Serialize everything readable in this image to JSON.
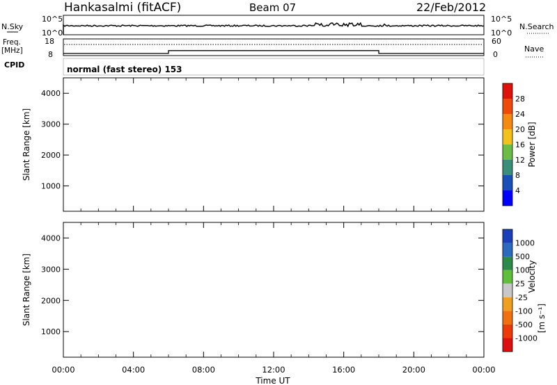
{
  "header": {
    "station": "Hankasalmi (fitACF)",
    "beam": "Beam 07",
    "date": "22/Feb/2012"
  },
  "colors": {
    "power_scale": [
      "#0000ff",
      "#1a4fb8",
      "#2d7fbf",
      "#3f9a6a",
      "#6bbd45",
      "#b7d32a",
      "#f2c21a",
      "#f59a12",
      "#f06a0c",
      "#e8380a",
      "#dd1608"
    ],
    "velocity_scale": [
      "#1a3fb8",
      "#2d6bbf",
      "#2e8a4a",
      "#5fbf3a",
      "#c8c8c8",
      "#c8c8c8",
      "#f0a020",
      "#f07010",
      "#ee3a0a",
      "#dd1010"
    ]
  },
  "chart_data": [
    {
      "type": "line",
      "panel": "noise",
      "left_label": "N.Sky",
      "right_label": "N.Search",
      "left_ticks": [
        "10^5",
        "10^0"
      ],
      "right_ticks": [
        "10^5",
        "10^0"
      ],
      "x_range_hours": [
        0,
        24
      ]
    },
    {
      "type": "line",
      "panel": "frequency",
      "left_label": "Freq.",
      "left_units": "[MHz]",
      "right_label": "Nave",
      "left_ticks": [
        18,
        8
      ],
      "right_ticks": [
        60,
        0
      ],
      "series": [
        {
          "points": [
            [
              0,
              9.3
            ],
            [
              6,
              9.3
            ],
            [
              6,
              11.0
            ],
            [
              18,
              11.0
            ],
            [
              18,
              9.3
            ],
            [
              24,
              9.3
            ]
          ]
        }
      ],
      "x_range_hours": [
        0,
        24
      ]
    },
    {
      "type": "table",
      "panel": "cpid",
      "label": "CPID",
      "text": "normal (fast stereo) 153"
    },
    {
      "type": "heatmap",
      "panel": "power",
      "ylabel": "Slant Range [km]",
      "yticks": [
        1000,
        2000,
        3000,
        4000
      ],
      "ylim": [
        180,
        4500
      ],
      "x_range_hours": [
        0,
        24
      ],
      "colorbar": {
        "label": "Power [dB]",
        "ticks": [
          4,
          8,
          12,
          16,
          20,
          24,
          28
        ],
        "range": [
          0,
          32
        ]
      }
    },
    {
      "type": "heatmap",
      "panel": "velocity",
      "ylabel": "Slant Range [km]",
      "yticks": [
        1000,
        2000,
        3000,
        4000
      ],
      "ylim": [
        180,
        4500
      ],
      "x_range_hours": [
        0,
        24
      ],
      "xticks": [
        "00:00",
        "04:00",
        "08:00",
        "12:00",
        "16:00",
        "20:00",
        "00:00"
      ],
      "xlabel": "Time UT",
      "colorbar": {
        "label": "Velocity",
        "units": "[m s⁻¹]",
        "ticks": [
          "1000",
          "500",
          "100",
          "25",
          "-25",
          "-100",
          "-500",
          "-1000"
        ]
      }
    }
  ]
}
